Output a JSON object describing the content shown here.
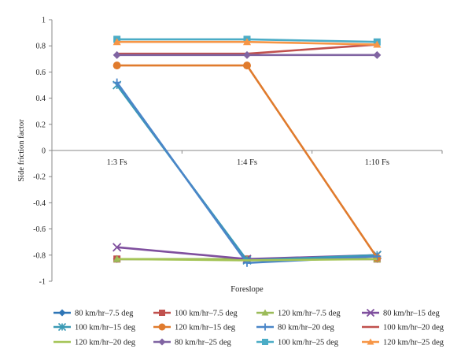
{
  "chart_data": {
    "type": "line",
    "title": "",
    "xlabel": "Foreslope",
    "ylabel": "Side friction factor",
    "categories": [
      "1:3 Fs",
      "1:4 Fs",
      "1:10 Fs"
    ],
    "ylim": [
      -1,
      1
    ],
    "yticks": [
      "-1",
      "-0.8",
      "-0.6",
      "-0.4",
      "-0.2",
      "0",
      "0.2",
      "0.4",
      "0.6",
      "0.8",
      "1"
    ],
    "grid": false,
    "legend_position": "bottom",
    "series": [
      {
        "name": "80 km/hr–7.5 deg",
        "color": "#2E75B6",
        "marker": "diamond",
        "values": [
          -0.83,
          -0.83,
          -0.83
        ]
      },
      {
        "name": "100 km/hr–7.5 deg",
        "color": "#C0504D",
        "marker": "square",
        "values": [
          -0.83,
          -0.83,
          -0.83
        ]
      },
      {
        "name": "120 km/hr–7.5 deg",
        "color": "#9BBB59",
        "marker": "triangle",
        "values": [
          -0.83,
          -0.83,
          -0.83
        ]
      },
      {
        "name": "80 km/hr–15 deg",
        "color": "#7F4F9E",
        "marker": "x",
        "values": [
          -0.74,
          -0.83,
          -0.8
        ]
      },
      {
        "name": "100 km/hr–15 deg",
        "color": "#3A9AB5",
        "marker": "star",
        "values": [
          0.5,
          -0.84,
          -0.8
        ]
      },
      {
        "name": "120 km/hr–15 deg",
        "color": "#E07B2D",
        "marker": "circle",
        "values": [
          0.65,
          0.65,
          -0.82
        ]
      },
      {
        "name": "80 km/hr–20 deg",
        "color": "#4A86C8",
        "marker": "plus",
        "values": [
          0.52,
          -0.86,
          -0.81
        ]
      },
      {
        "name": "100 km/hr–20 deg",
        "color": "#C0504D",
        "marker": "none",
        "values": [
          0.74,
          0.74,
          0.81
        ]
      },
      {
        "name": "120 km/hr–20 deg",
        "color": "#A4C456",
        "marker": "none",
        "values": [
          -0.83,
          -0.84,
          -0.83
        ]
      },
      {
        "name": "80 km/hr–25 deg",
        "color": "#8064A2",
        "marker": "diamond",
        "values": [
          0.73,
          0.73,
          0.73
        ]
      },
      {
        "name": "100 km/hr–25 deg",
        "color": "#4BACC6",
        "marker": "square",
        "values": [
          0.85,
          0.85,
          0.83
        ]
      },
      {
        "name": "120 km/hr–25 deg",
        "color": "#F79646",
        "marker": "triangle",
        "values": [
          0.83,
          0.83,
          0.81
        ]
      }
    ]
  }
}
